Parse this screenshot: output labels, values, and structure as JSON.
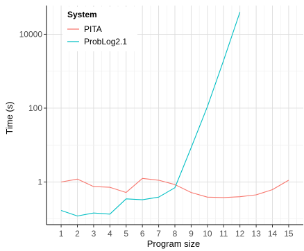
{
  "chart_data": {
    "type": "line",
    "xlabel": "Program size",
    "ylabel": "Time (s)",
    "x": [
      1,
      2,
      3,
      4,
      5,
      6,
      7,
      8,
      9,
      10,
      11,
      12,
      13,
      14,
      15
    ],
    "x_ticks": [
      "1",
      "2",
      "3",
      "4",
      "5",
      "6",
      "7",
      "8",
      "9",
      "10",
      "11",
      "12",
      "13",
      "14",
      "15"
    ],
    "y_scale": "log10",
    "y_ticks": [
      1,
      100,
      10000
    ],
    "y_tick_labels": [
      "1",
      "100",
      "10000"
    ],
    "ylim": [
      0.07,
      60000
    ],
    "grid": true,
    "legend": {
      "title": "System",
      "position": "top-left"
    },
    "series": [
      {
        "name": "PITA",
        "color": "#F8766D",
        "x": [
          1,
          2,
          3,
          4,
          5,
          6,
          7,
          8,
          9,
          10,
          11,
          12,
          13,
          14,
          15
        ],
        "values": [
          1.0,
          1.2,
          0.75,
          0.72,
          0.52,
          1.25,
          1.12,
          0.85,
          0.52,
          0.39,
          0.38,
          0.4,
          0.45,
          0.62,
          1.12
        ]
      },
      {
        "name": "ProbLog2.1",
        "color": "#00BFC4",
        "x": [
          1,
          2,
          3,
          4,
          5,
          6,
          7,
          8,
          9,
          10,
          11,
          12
        ],
        "values": [
          0.17,
          0.12,
          0.145,
          0.135,
          0.35,
          0.33,
          0.39,
          0.7,
          8.5,
          110,
          2000,
          40000
        ]
      }
    ]
  }
}
